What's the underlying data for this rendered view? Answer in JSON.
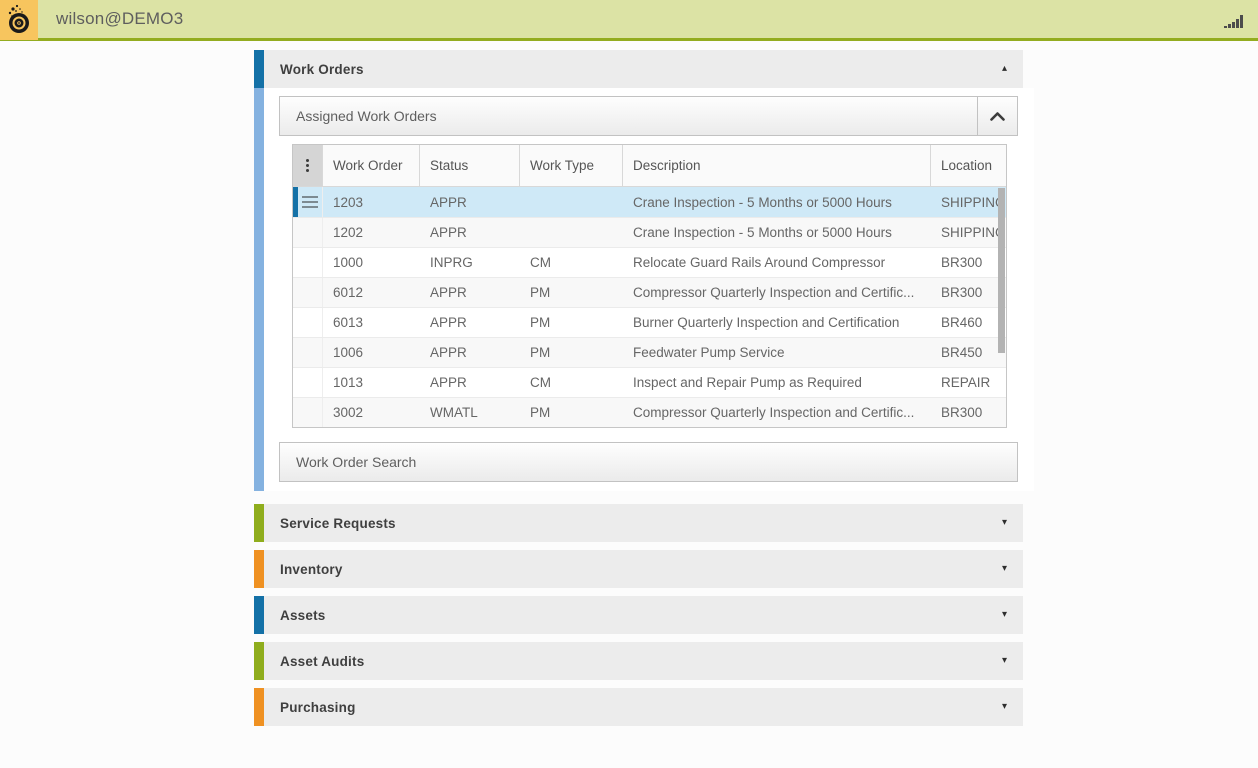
{
  "topbar": {
    "username": "wilson@DEMO3",
    "colors": {
      "background": "#dce3a5",
      "border_bottom": "#93ac1f",
      "logo_background": "#f7c55e"
    }
  },
  "icons": {
    "collapse_glyph": "▴",
    "expand_glyph": "▾"
  },
  "sections": [
    {
      "label": "Work Orders",
      "accent_color": "#1471a7",
      "state": "expanded"
    },
    {
      "label": "Service Requests",
      "accent_color": "#8fad1d",
      "state": "collapsed"
    },
    {
      "label": "Inventory",
      "accent_color": "#ef9122",
      "state": "collapsed"
    },
    {
      "label": "Assets",
      "accent_color": "#1471a7",
      "state": "collapsed"
    },
    {
      "label": "Asset Audits",
      "accent_color": "#8fad1d",
      "state": "collapsed"
    },
    {
      "label": "Purchasing",
      "accent_color": "#ef9122",
      "state": "collapsed"
    }
  ],
  "work_orders": {
    "panel_title": "Assigned Work Orders",
    "search_label": "Work Order Search",
    "expanded_bar_color": "#85b2e0",
    "selected_row_color": "#cfe9f7",
    "table": {
      "columns": [
        "Work Order",
        "Status",
        "Work Type",
        "Description",
        "Location"
      ],
      "rows": [
        {
          "work_order": "1203",
          "status": "APPR",
          "work_type": "",
          "description": "Crane Inspection - 5 Months or 5000 Hours",
          "location": "SHIPPING",
          "selected": true
        },
        {
          "work_order": "1202",
          "status": "APPR",
          "work_type": "",
          "description": "Crane Inspection - 5 Months or 5000 Hours",
          "location": "SHIPPING",
          "selected": false
        },
        {
          "work_order": "1000",
          "status": "INPRG",
          "work_type": "CM",
          "description": "Relocate Guard Rails Around Compressor",
          "location": "BR300",
          "selected": false
        },
        {
          "work_order": "6012",
          "status": "APPR",
          "work_type": "PM",
          "description": "Compressor Quarterly Inspection and Certific...",
          "location": "BR300",
          "selected": false
        },
        {
          "work_order": "6013",
          "status": "APPR",
          "work_type": "PM",
          "description": "Burner Quarterly Inspection and Certification",
          "location": "BR460",
          "selected": false
        },
        {
          "work_order": "1006",
          "status": "APPR",
          "work_type": "PM",
          "description": "Feedwater Pump Service",
          "location": "BR450",
          "selected": false
        },
        {
          "work_order": "1013",
          "status": "APPR",
          "work_type": "CM",
          "description": "Inspect and Repair Pump as Required",
          "location": "REPAIR",
          "selected": false
        },
        {
          "work_order": "3002",
          "status": "WMATL",
          "work_type": "PM",
          "description": "Compressor Quarterly Inspection and Certific...",
          "location": "BR300",
          "selected": false
        }
      ]
    }
  }
}
